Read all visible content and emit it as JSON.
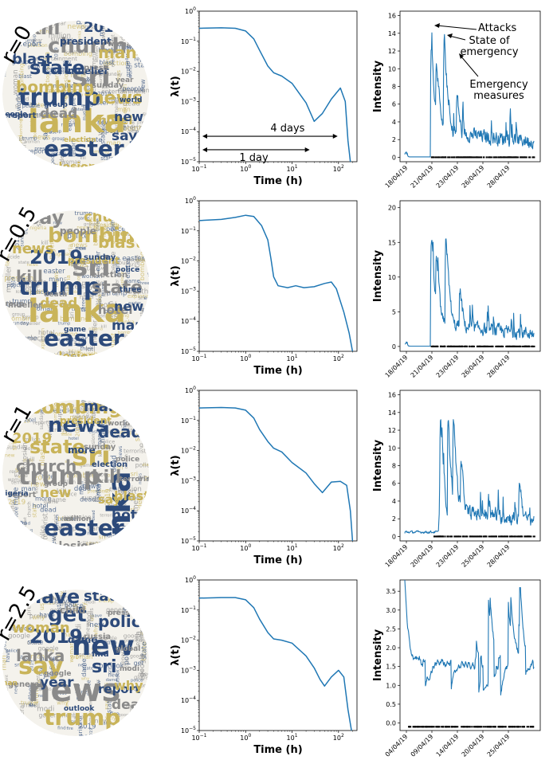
{
  "rows": [
    {
      "r_label": "r=0",
      "wordcloud": [
        {
          "w": "lanka",
          "c": "#c9b45a"
        },
        {
          "w": "sri",
          "c": "#8a8a8a"
        },
        {
          "w": "trump",
          "c": "#2d4a7a"
        },
        {
          "w": "easter",
          "c": "#2d4a7a"
        },
        {
          "w": "church",
          "c": "#8a8a8a"
        },
        {
          "w": "state",
          "c": "#2d4a7a"
        },
        {
          "w": "kill",
          "c": "#8a8a8a"
        },
        {
          "w": "news",
          "c": "#c9b45a"
        },
        {
          "w": "bombing",
          "c": "#c9b45a"
        },
        {
          "w": "man",
          "c": "#c9b45a"
        },
        {
          "w": "2019",
          "c": "#2d4a7a"
        },
        {
          "w": "blast",
          "c": "#2d4a7a"
        },
        {
          "w": "dead",
          "c": "#8a8a8a"
        },
        {
          "w": "say",
          "c": "#2d4a7a"
        },
        {
          "w": "hotel",
          "c": "#c9b45a"
        },
        {
          "w": "new",
          "c": "#2d4a7a"
        },
        {
          "w": "explosion",
          "c": "#c9b45a"
        },
        {
          "w": "mueller",
          "c": "#2d4a7a"
        },
        {
          "w": "president",
          "c": "#2d4a7a"
        },
        {
          "w": "press",
          "c": "#8a8a8a"
        },
        {
          "w": "report",
          "c": "#2d4a7a"
        },
        {
          "w": "sunday",
          "c": "#8a8a8a"
        },
        {
          "w": "group",
          "c": "#2d4a7a"
        },
        {
          "w": "people",
          "c": "#2d4a7a"
        },
        {
          "w": "election",
          "c": "#c9b45a"
        },
        {
          "w": "woman",
          "c": "#8a8a8a"
        },
        {
          "w": "year",
          "c": "#8a8a8a"
        },
        {
          "w": "million",
          "c": "#8a8a8a"
        },
        {
          "w": "world",
          "c": "#2d4a7a"
        },
        {
          "w": "entertainment",
          "c": "#8a8a8a"
        }
      ],
      "hawkes": {
        "ylabel": "λ(t)",
        "xlabel": "Time (h)",
        "points": [
          [
            0.1,
            0.27
          ],
          [
            0.3,
            0.28
          ],
          [
            0.6,
            0.27
          ],
          [
            1,
            0.22
          ],
          [
            1.5,
            0.12
          ],
          [
            2,
            0.05
          ],
          [
            3,
            0.015
          ],
          [
            4,
            0.009
          ],
          [
            6,
            0.007
          ],
          [
            10,
            0.004
          ],
          [
            20,
            0.0009
          ],
          [
            30,
            0.00022
          ],
          [
            45,
            0.0004
          ],
          [
            70,
            0.0012
          ],
          [
            110,
            0.0028
          ],
          [
            140,
            0.001
          ],
          [
            160,
            5e-05
          ],
          [
            180,
            1e-05
          ]
        ],
        "annotations": [
          "4 days",
          "1 day"
        ]
      },
      "intensity": {
        "ylabel": "Intensity",
        "yticks": [
          0,
          2,
          4,
          6,
          8,
          10,
          12,
          14,
          16
        ],
        "ylim": [
          -0.5,
          16.5
        ],
        "date_ticks": [
          "18/04/19",
          "21/04/19",
          "23/04/19",
          "26/04/19",
          "28/04/19"
        ],
        "annotations": [
          "Attacks",
          "State of\nemergency",
          "Emergency\nmeasures"
        ]
      }
    },
    {
      "r_label": "r=0.5",
      "wordcloud": [
        {
          "w": "lanka",
          "c": "#c9b45a"
        },
        {
          "w": "sri",
          "c": "#8a8a8a"
        },
        {
          "w": "trump",
          "c": "#2d4a7a"
        },
        {
          "w": "easter",
          "c": "#2d4a7a"
        },
        {
          "w": "bombing",
          "c": "#c9b45a"
        },
        {
          "w": "2019",
          "c": "#2d4a7a"
        },
        {
          "w": "say",
          "c": "#8a8a8a"
        },
        {
          "w": "state",
          "c": "#8a8a8a"
        },
        {
          "w": "kill",
          "c": "#8a8a8a"
        },
        {
          "w": "blast",
          "c": "#c9b45a"
        },
        {
          "w": "church",
          "c": "#c9b45a"
        },
        {
          "w": "news",
          "c": "#c9b45a"
        },
        {
          "w": "dead",
          "c": "#c9b45a"
        },
        {
          "w": "man",
          "c": "#2d4a7a"
        },
        {
          "w": "hotel",
          "c": "#8a8a8a"
        },
        {
          "w": "new",
          "c": "#2d4a7a"
        },
        {
          "w": "explosion",
          "c": "#c9b45a"
        },
        {
          "w": "president",
          "c": "#c9b45a"
        },
        {
          "w": "people",
          "c": "#8a8a8a"
        },
        {
          "w": "sunday",
          "c": "#2d4a7a"
        },
        {
          "w": "mueller",
          "c": "#8a8a8a"
        },
        {
          "w": "election",
          "c": "#8a8a8a"
        },
        {
          "w": "death",
          "c": "#8a8a8a"
        },
        {
          "w": "group",
          "c": "#8a8a8a"
        },
        {
          "w": "game",
          "c": "#2d4a7a"
        },
        {
          "w": "nigeria",
          "c": "#c9b45a"
        },
        {
          "w": "police",
          "c": "#2d4a7a"
        },
        {
          "w": "woman",
          "c": "#2d4a7a"
        },
        {
          "w": "three",
          "c": "#2d4a7a"
        },
        {
          "w": "suicide",
          "c": "#8a8a8a"
        }
      ],
      "hawkes": {
        "ylabel": "λ(t)",
        "xlabel": "Time (h)",
        "points": [
          [
            0.1,
            0.22
          ],
          [
            0.3,
            0.24
          ],
          [
            0.6,
            0.28
          ],
          [
            1,
            0.33
          ],
          [
            1.5,
            0.3
          ],
          [
            2.2,
            0.15
          ],
          [
            3,
            0.05
          ],
          [
            3.5,
            0.012
          ],
          [
            4,
            0.003
          ],
          [
            5,
            0.0015
          ],
          [
            8,
            0.0013
          ],
          [
            12,
            0.0015
          ],
          [
            18,
            0.0013
          ],
          [
            30,
            0.0014
          ],
          [
            50,
            0.0018
          ],
          [
            70,
            0.002
          ],
          [
            90,
            0.0012
          ],
          [
            130,
            0.0002
          ],
          [
            170,
            4e-05
          ],
          [
            200,
            1e-05
          ]
        ],
        "annotations": []
      },
      "intensity": {
        "ylabel": "Intensity",
        "yticks": [
          0,
          5,
          10,
          15,
          20
        ],
        "ylim": [
          -0.7,
          21
        ],
        "date_ticks": [
          "18/04/19",
          "21/04/19",
          "23/04/19",
          "26/04/19",
          "28/04/19"
        ],
        "annotations": []
      }
    },
    {
      "r_label": "r=1",
      "wordcloud": [
        {
          "w": "lanka",
          "c": "#2d4a7a"
        },
        {
          "w": "sri",
          "c": "#c9b45a"
        },
        {
          "w": "trump",
          "c": "#8a8a8a"
        },
        {
          "w": "easter",
          "c": "#2d4a7a"
        },
        {
          "w": "news",
          "c": "#2d4a7a"
        },
        {
          "w": "state",
          "c": "#c9b45a"
        },
        {
          "w": "bombing",
          "c": "#c9b45a"
        },
        {
          "w": "kill",
          "c": "#8a8a8a"
        },
        {
          "w": "church",
          "c": "#8a8a8a"
        },
        {
          "w": "dead",
          "c": "#2d4a7a"
        },
        {
          "w": "man",
          "c": "#2d4a7a"
        },
        {
          "w": "2019",
          "c": "#c9b45a"
        },
        {
          "w": "new",
          "c": "#c9b45a"
        },
        {
          "w": "hotel",
          "c": "#2d4a7a"
        },
        {
          "w": "say",
          "c": "#c9b45a"
        },
        {
          "w": "blast",
          "c": "#c9b45a"
        },
        {
          "w": "explosion",
          "c": "#8a8a8a"
        },
        {
          "w": "more",
          "c": "#2d4a7a"
        },
        {
          "w": "president",
          "c": "#c9b45a"
        },
        {
          "w": "sunday",
          "c": "#8a8a8a"
        },
        {
          "w": "report",
          "c": "#8a8a8a"
        },
        {
          "w": "election",
          "c": "#2d4a7a"
        },
        {
          "w": "group",
          "c": "#8a8a8a"
        },
        {
          "w": "nigeria",
          "c": "#2d4a7a"
        },
        {
          "w": "million",
          "c": "#8a8a8a"
        },
        {
          "w": "world",
          "c": "#8a8a8a"
        },
        {
          "w": "police",
          "c": "#8a8a8a"
        },
        {
          "w": "woman",
          "c": "#8a8a8a"
        },
        {
          "w": "terrorist",
          "c": "#8a8a8a"
        },
        {
          "w": "game",
          "c": "#8a8a8a"
        }
      ],
      "hawkes": {
        "ylabel": "λ(t)",
        "xlabel": "Time (h)",
        "points": [
          [
            0.1,
            0.26
          ],
          [
            0.3,
            0.27
          ],
          [
            0.6,
            0.26
          ],
          [
            1,
            0.22
          ],
          [
            1.5,
            0.12
          ],
          [
            2,
            0.05
          ],
          [
            3,
            0.02
          ],
          [
            4,
            0.012
          ],
          [
            6,
            0.009
          ],
          [
            10,
            0.004
          ],
          [
            20,
            0.0018
          ],
          [
            30,
            0.0008
          ],
          [
            45,
            0.0004
          ],
          [
            70,
            0.0009
          ],
          [
            110,
            0.00095
          ],
          [
            150,
            0.0007
          ],
          [
            180,
            0.0001
          ],
          [
            200,
            1e-05
          ]
        ],
        "annotations": []
      },
      "intensity": {
        "ylabel": "Intensity",
        "yticks": [
          0,
          2,
          4,
          6,
          8,
          10,
          12,
          14,
          16
        ],
        "ylim": [
          -0.5,
          16.5
        ],
        "date_ticks": [
          "18/04/19",
          "20/04/19",
          "23/04/19",
          "25/04/19",
          "28/04/19"
        ],
        "annotations": []
      }
    },
    {
      "r_label": "r=2.5",
      "wordcloud": [
        {
          "w": "news",
          "c": "#8a8a8a"
        },
        {
          "w": "new",
          "c": "#2d4a7a"
        },
        {
          "w": "say",
          "c": "#c9b45a"
        },
        {
          "w": "trump",
          "c": "#c9b45a"
        },
        {
          "w": "get",
          "c": "#2d4a7a"
        },
        {
          "w": "2019",
          "c": "#2d4a7a"
        },
        {
          "w": "have",
          "c": "#2d4a7a"
        },
        {
          "w": "sri",
          "c": "#2d4a7a"
        },
        {
          "w": "lanka",
          "c": "#8a8a8a"
        },
        {
          "w": "police",
          "c": "#2d4a7a"
        },
        {
          "w": "state",
          "c": "#2d4a7a"
        },
        {
          "w": "woman",
          "c": "#c9b45a"
        },
        {
          "w": "year",
          "c": "#2d4a7a"
        },
        {
          "w": "death",
          "c": "#8a8a8a"
        },
        {
          "w": "report",
          "c": "#2d4a7a"
        },
        {
          "w": "why",
          "c": "#c9b45a"
        },
        {
          "w": "fire",
          "c": "#2d4a7a"
        },
        {
          "w": "dame",
          "c": "#2d4a7a"
        },
        {
          "w": "child",
          "c": "#8a8a8a"
        },
        {
          "w": "russia",
          "c": "#8a8a8a"
        },
        {
          "w": "general",
          "c": "#8a8a8a"
        },
        {
          "w": "find",
          "c": "#2d4a7a"
        },
        {
          "w": "google",
          "c": "#8a8a8a"
        },
        {
          "w": "man",
          "c": "#c9b45a"
        },
        {
          "w": "outlook",
          "c": "#2d4a7a"
        },
        {
          "w": "press",
          "c": "#8a8a8a"
        },
        {
          "w": "global",
          "c": "#8a8a8a"
        },
        {
          "w": "government",
          "c": "#8a8a8a"
        },
        {
          "w": "modi",
          "c": "#8a8a8a"
        },
        {
          "w": "us",
          "c": "#c9b45a"
        }
      ],
      "hawkes": {
        "ylabel": "λ(t)",
        "xlabel": "Time (h)",
        "points": [
          [
            0.1,
            0.25
          ],
          [
            0.3,
            0.26
          ],
          [
            0.6,
            0.26
          ],
          [
            1,
            0.22
          ],
          [
            1.5,
            0.12
          ],
          [
            2,
            0.05
          ],
          [
            3,
            0.018
          ],
          [
            4,
            0.011
          ],
          [
            6,
            0.01
          ],
          [
            10,
            0.008
          ],
          [
            20,
            0.003
          ],
          [
            30,
            0.0012
          ],
          [
            40,
            0.0005
          ],
          [
            50,
            0.0003
          ],
          [
            70,
            0.0006
          ],
          [
            100,
            0.001
          ],
          [
            130,
            0.0006
          ],
          [
            160,
            5e-05
          ],
          [
            190,
            1e-05
          ]
        ],
        "annotations": []
      },
      "intensity": {
        "ylabel": "Intensity",
        "yticks": [
          0.0,
          0.5,
          1.0,
          1.5,
          2.0,
          2.5,
          3.0,
          3.5
        ],
        "ylim": [
          -0.2,
          3.8
        ],
        "date_ticks": [
          "04/04/19",
          "09/04/19",
          "14/04/19",
          "20/04/19",
          "25/04/19"
        ],
        "annotations": []
      }
    }
  ],
  "chart_data": [
    {
      "type": "line",
      "ylabel": "λ(t)",
      "xlabel": "Time (h)",
      "xscale": "log",
      "yscale": "log",
      "xlim": [
        0.1,
        250
      ],
      "ylim": [
        1e-05,
        1
      ],
      "x": [
        0.1,
        0.3,
        0.6,
        1,
        1.5,
        2,
        3,
        4,
        6,
        10,
        20,
        30,
        45,
        70,
        110,
        140,
        160,
        180
      ],
      "y": [
        0.27,
        0.28,
        0.27,
        0.22,
        0.12,
        0.05,
        0.015,
        0.009,
        0.007,
        0.004,
        0.0009,
        0.00022,
        0.0004,
        0.0012,
        0.0028,
        0.001,
        5e-05,
        1e-05
      ]
    },
    {
      "type": "line",
      "ylabel": "Intensity",
      "date_ticks": [
        "18/04/19",
        "21/04/19",
        "23/04/19",
        "26/04/19",
        "28/04/19"
      ],
      "ylim": [
        -0.5,
        16.5
      ],
      "annotations": [
        "Attacks",
        "State of emergency",
        "Emergency measures"
      ]
    },
    {
      "type": "line",
      "ylabel": "λ(t)",
      "xlabel": "Time (h)",
      "xscale": "log",
      "yscale": "log",
      "xlim": [
        0.1,
        250
      ],
      "ylim": [
        1e-05,
        1
      ],
      "x": [
        0.1,
        0.3,
        0.6,
        1,
        1.5,
        2.2,
        3,
        3.5,
        4,
        5,
        8,
        12,
        18,
        30,
        50,
        70,
        90,
        130,
        170,
        200
      ],
      "y": [
        0.22,
        0.24,
        0.28,
        0.33,
        0.3,
        0.15,
        0.05,
        0.012,
        0.003,
        0.0015,
        0.0013,
        0.0015,
        0.0013,
        0.0014,
        0.0018,
        0.002,
        0.0012,
        0.0002,
        4e-05,
        1e-05
      ]
    },
    {
      "type": "line",
      "ylabel": "Intensity",
      "date_ticks": [
        "18/04/19",
        "21/04/19",
        "23/04/19",
        "26/04/19",
        "28/04/19"
      ],
      "ylim": [
        -0.7,
        21
      ]
    },
    {
      "type": "line",
      "ylabel": "λ(t)",
      "xlabel": "Time (h)",
      "xscale": "log",
      "yscale": "log",
      "xlim": [
        0.1,
        250
      ],
      "ylim": [
        1e-05,
        1
      ],
      "x": [
        0.1,
        0.3,
        0.6,
        1,
        1.5,
        2,
        3,
        4,
        6,
        10,
        20,
        30,
        45,
        70,
        110,
        150,
        180,
        200
      ],
      "y": [
        0.26,
        0.27,
        0.26,
        0.22,
        0.12,
        0.05,
        0.02,
        0.012,
        0.009,
        0.004,
        0.0018,
        0.0008,
        0.0004,
        0.0009,
        0.00095,
        0.0007,
        0.0001,
        1e-05
      ]
    },
    {
      "type": "line",
      "ylabel": "Intensity",
      "date_ticks": [
        "18/04/19",
        "20/04/19",
        "23/04/19",
        "25/04/19",
        "28/04/19"
      ],
      "ylim": [
        -0.5,
        16.5
      ]
    },
    {
      "type": "line",
      "ylabel": "λ(t)",
      "xlabel": "Time (h)",
      "xscale": "log",
      "yscale": "log",
      "xlim": [
        0.1,
        250
      ],
      "ylim": [
        1e-05,
        1
      ],
      "x": [
        0.1,
        0.3,
        0.6,
        1,
        1.5,
        2,
        3,
        4,
        6,
        10,
        20,
        30,
        40,
        50,
        70,
        100,
        130,
        160,
        190
      ],
      "y": [
        0.25,
        0.26,
        0.26,
        0.22,
        0.12,
        0.05,
        0.018,
        0.011,
        0.01,
        0.008,
        0.003,
        0.0012,
        0.0005,
        0.0003,
        0.0006,
        0.001,
        0.0006,
        5e-05,
        1e-05
      ]
    },
    {
      "type": "line",
      "ylabel": "Intensity",
      "date_ticks": [
        "04/04/19",
        "09/04/19",
        "14/04/19",
        "20/04/19",
        "25/04/19"
      ],
      "ylim": [
        -0.2,
        3.8
      ]
    }
  ]
}
